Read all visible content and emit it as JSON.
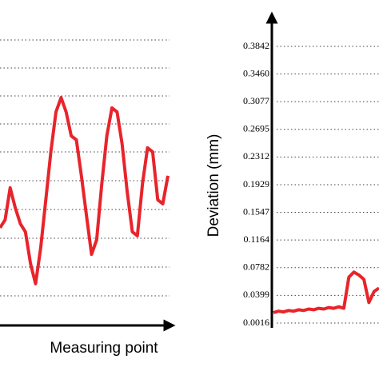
{
  "chart_data": [
    {
      "type": "line",
      "xlabel": "Measuring point",
      "color": "#e8242b",
      "ylim": [
        0,
        10
      ],
      "values": [
        3.42,
        3.7,
        4.82,
        4.12,
        3.56,
        3.28,
        2.16,
        1.46,
        2.72,
        4.4,
        6.08,
        7.48,
        7.98,
        7.48,
        6.64,
        6.5,
        5.24,
        3.84,
        2.49,
        3.0,
        4.96,
        6.64,
        7.62,
        7.48,
        6.36,
        4.68,
        3.28,
        3.14,
        4.96,
        6.22,
        6.08,
        4.4,
        4.26,
        5.24
      ]
    },
    {
      "type": "line",
      "ylabel": "Deviation (mm)",
      "color": "#e8242b",
      "ylim": [
        0.0016,
        0.3842
      ],
      "yticks": [
        0.0016,
        0.0399,
        0.0782,
        0.1164,
        0.1547,
        0.1929,
        0.2312,
        0.2695,
        0.3077,
        {
          "value": 0.346,
          "label": "0.3460"
        },
        0.3842
      ],
      "grid": true,
      "values": [
        0.016,
        0.018,
        0.017,
        0.019,
        0.018,
        0.02,
        0.019,
        0.021,
        0.02,
        0.022,
        0.021,
        0.023,
        0.022,
        0.024,
        0.022,
        0.065,
        0.072,
        0.068,
        0.062,
        0.03,
        0.045,
        0.05
      ]
    }
  ]
}
